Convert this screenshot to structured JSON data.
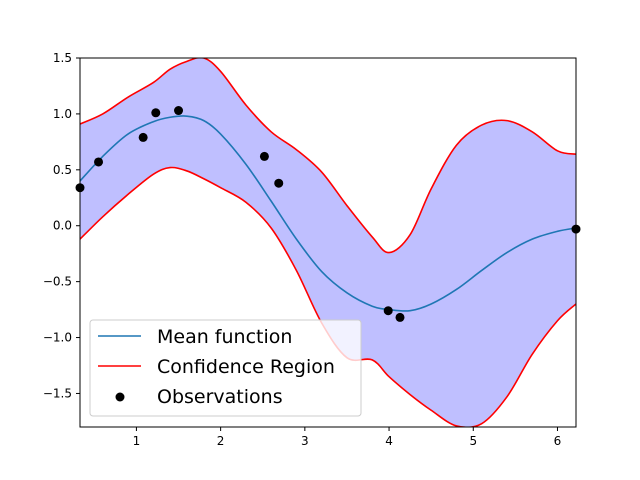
{
  "chart_data": {
    "type": "line",
    "title": "",
    "xlabel": "",
    "ylabel": "",
    "xlim": [
      0.33,
      6.22
    ],
    "ylim": [
      -1.8,
      1.5
    ],
    "grid": false,
    "legend_position": "lower-left",
    "xticks": [
      1,
      2,
      3,
      4,
      5,
      6
    ],
    "yticks": [
      -1.5,
      -1.0,
      -0.5,
      0.0,
      0.5,
      1.0,
      1.5
    ],
    "xtick_labels": [
      "1",
      "2",
      "3",
      "4",
      "5",
      "6"
    ],
    "ytick_labels": [
      "−1.5",
      "−1.0",
      "−0.5",
      "0.0",
      "0.5",
      "1.0",
      "1.5"
    ],
    "series": [
      {
        "name": "Mean function",
        "kind": "line",
        "color": "#1f77b4",
        "x": [
          0.33,
          0.6,
          0.9,
          1.2,
          1.4,
          1.6,
          1.8,
          2.0,
          2.3,
          2.6,
          2.9,
          3.2,
          3.5,
          3.8,
          4.0,
          4.25,
          4.5,
          4.8,
          5.1,
          5.4,
          5.7,
          6.0,
          6.22
        ],
        "y": [
          0.4,
          0.62,
          0.82,
          0.93,
          0.97,
          0.98,
          0.94,
          0.82,
          0.55,
          0.22,
          -0.12,
          -0.41,
          -0.6,
          -0.72,
          -0.75,
          -0.76,
          -0.7,
          -0.57,
          -0.4,
          -0.24,
          -0.12,
          -0.05,
          -0.02
        ]
      },
      {
        "name": "Confidence Region",
        "kind": "band",
        "color": "#ff0000",
        "fill": "#bfbfff",
        "x": [
          0.33,
          0.6,
          0.9,
          1.2,
          1.4,
          1.6,
          1.8,
          2.0,
          2.3,
          2.6,
          2.9,
          3.2,
          3.5,
          3.8,
          4.0,
          4.25,
          4.5,
          4.8,
          5.1,
          5.4,
          5.7,
          6.0,
          6.22
        ],
        "upper": [
          0.91,
          1.0,
          1.15,
          1.28,
          1.4,
          1.47,
          1.5,
          1.38,
          1.08,
          0.84,
          0.68,
          0.48,
          0.18,
          -0.1,
          -0.24,
          -0.08,
          0.33,
          0.72,
          0.9,
          0.94,
          0.84,
          0.67,
          0.64
        ],
        "lower": [
          -0.12,
          0.08,
          0.28,
          0.46,
          0.52,
          0.49,
          0.42,
          0.34,
          0.21,
          -0.02,
          -0.4,
          -0.87,
          -1.18,
          -1.2,
          -1.35,
          -1.51,
          -1.65,
          -1.79,
          -1.77,
          -1.53,
          -1.15,
          -0.85,
          -0.7
        ]
      },
      {
        "name": "Observations",
        "kind": "scatter",
        "color": "#000000",
        "x": [
          0.33,
          0.55,
          1.08,
          1.23,
          1.5,
          2.52,
          2.69,
          3.99,
          4.13,
          6.22
        ],
        "y": [
          0.34,
          0.57,
          0.79,
          1.01,
          1.03,
          0.62,
          0.38,
          -0.76,
          -0.82,
          -0.03
        ]
      }
    ]
  }
}
